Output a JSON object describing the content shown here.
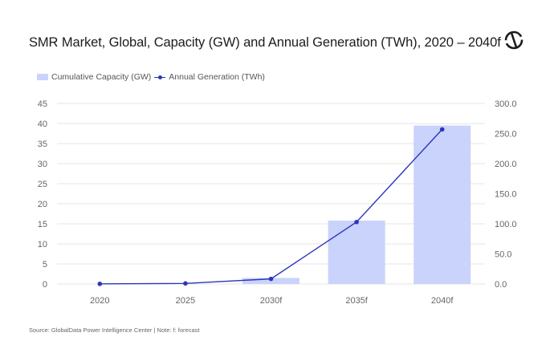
{
  "chart_data": {
    "type": "bar",
    "title": "SMR Market, Global, Capacity (GW) and Annual Generation (TWh), 2020 – 2040f",
    "categories": [
      "2020",
      "2025",
      "2030f",
      "2035f",
      "2040f"
    ],
    "series": [
      {
        "name": "Cumulative Capacity (GW)",
        "type": "bar",
        "axis": "left",
        "values": [
          0,
          0,
          1.5,
          15.8,
          39.5
        ],
        "color": "#c9d3fb"
      },
      {
        "name": "Annual Generation (TWh)",
        "type": "line",
        "axis": "right",
        "values": [
          0.2,
          0.9,
          8.5,
          103,
          257
        ],
        "color": "#2b37b8"
      }
    ],
    "yleft": {
      "lim": [
        0,
        45
      ],
      "ticks": [
        "0",
        "5",
        "10",
        "15",
        "20",
        "25",
        "30",
        "35",
        "40",
        "45"
      ]
    },
    "yright": {
      "lim": [
        0,
        300
      ],
      "ticks": [
        "0.0",
        "50.0",
        "100.0",
        "150.0",
        "200.0",
        "250.0",
        "300.0"
      ]
    },
    "grid": true,
    "legend_position": "top-left"
  },
  "source_note": "Source: GlobalData Power Intelligence Center | Note: f: forecast",
  "logo": {
    "icon": "globaldata-logo-icon"
  }
}
